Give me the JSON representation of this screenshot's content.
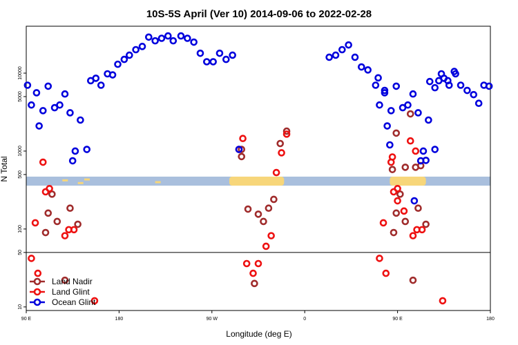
{
  "chart_data": {
    "type": "scatter",
    "title": "10S-5S April (Ver 10)   2014-09-06 to 2022-02-28",
    "xlabel": "Longitude (deg E)",
    "ylabel": "N Total",
    "x_scale": "longitude, 90 E to 180 (wrapping through 180 and 0)",
    "y_scale": "log",
    "ylim": [
      9,
      40000
    ],
    "xlim_labels": [
      "90 E",
      "180"
    ],
    "x_ticks": [
      {
        "label": "90 E",
        "lon": 90
      },
      {
        "label": "180",
        "lon": 180
      },
      {
        "label": "90 W",
        "lon": -90
      },
      {
        "label": "0",
        "lon": 0
      },
      {
        "label": "90 E",
        "lon": 90
      },
      {
        "label": "180",
        "lon": 180
      }
    ],
    "y_ticks": [
      {
        "label": "10",
        "value": 10
      },
      {
        "label": "50",
        "value": 50
      },
      {
        "label": "100",
        "value": 100
      },
      {
        "label": "500",
        "value": 500
      },
      {
        "label": "1000",
        "value": 1000
      },
      {
        "label": "5000",
        "value": 5000
      },
      {
        "label": "10000",
        "value": 10000
      }
    ],
    "reference_line_y": 50,
    "map_strip": {
      "y_low": 360,
      "y_high": 470,
      "ocean_color": "#a9bfdd",
      "land_color": "#f7d67a"
    },
    "land_segments_lon": [
      [
        -112.5,
        -70
      ],
      [
        12,
        40
      ]
    ],
    "legend_position": "bottom-left",
    "series": [
      {
        "name": "Land Nadir",
        "color": "#a02c2c",
        "points": [
          {
            "x": 105,
            "y": 90
          },
          {
            "x": 107,
            "y": 160
          },
          {
            "x": 110,
            "y": 280
          },
          {
            "x": 114,
            "y": 125
          },
          {
            "x": 120,
            "y": 22
          },
          {
            "x": 124,
            "y": 185
          },
          {
            "x": 130,
            "y": 115
          },
          {
            "x": -103,
            "y": 850
          },
          {
            "x": -103,
            "y": 1050
          },
          {
            "x": -98,
            "y": 180
          },
          {
            "x": -93,
            "y": 20
          },
          {
            "x": -90,
            "y": 155
          },
          {
            "x": -86,
            "y": 125
          },
          {
            "x": -82,
            "y": 185
          },
          {
            "x": -78,
            "y": 240
          },
          {
            "x": -73,
            "y": 1250
          },
          {
            "x": -68,
            "y": 1800
          },
          {
            "x": 14,
            "y": 580
          },
          {
            "x": 17,
            "y": 1700
          },
          {
            "x": 24,
            "y": 620
          },
          {
            "x": 28,
            "y": 3000
          },
          {
            "x": 32,
            "y": 620
          },
          {
            "x": 36,
            "y": 650
          },
          {
            "x": 105,
            "y": 90
          },
          {
            "x": 107,
            "y": 160
          },
          {
            "x": 110,
            "y": 280
          },
          {
            "x": 114,
            "y": 125
          },
          {
            "x": 120,
            "y": 22
          },
          {
            "x": 124,
            "y": 185
          },
          {
            "x": 130,
            "y": 115
          }
        ]
      },
      {
        "name": "Land Glint",
        "color": "#ee1111",
        "points": [
          {
            "x": 94,
            "y": 42
          },
          {
            "x": 97,
            "y": 120
          },
          {
            "x": 99,
            "y": 27
          },
          {
            "x": 103,
            "y": 720
          },
          {
            "x": 105,
            "y": 300
          },
          {
            "x": 108,
            "y": 330
          },
          {
            "x": 120,
            "y": 82
          },
          {
            "x": 123,
            "y": 98
          },
          {
            "x": 127,
            "y": 98
          },
          {
            "x": 143,
            "y": 12
          },
          {
            "x": -105,
            "y": 1050
          },
          {
            "x": -102,
            "y": 1450
          },
          {
            "x": -99,
            "y": 36
          },
          {
            "x": -94,
            "y": 27
          },
          {
            "x": -90,
            "y": 36
          },
          {
            "x": -84,
            "y": 60
          },
          {
            "x": -80,
            "y": 82
          },
          {
            "x": -76,
            "y": 530
          },
          {
            "x": -72,
            "y": 950
          },
          {
            "x": -68,
            "y": 1650
          },
          {
            "x": 14,
            "y": 840
          },
          {
            "x": 18,
            "y": 230
          },
          {
            "x": 23,
            "y": 170
          },
          {
            "x": 28,
            "y": 1350
          },
          {
            "x": 32,
            "y": 1000
          },
          {
            "x": 94,
            "y": 42
          },
          {
            "x": 97,
            "y": 120
          },
          {
            "x": 99,
            "y": 27
          },
          {
            "x": 103,
            "y": 720
          },
          {
            "x": 105,
            "y": 300
          },
          {
            "x": 108,
            "y": 330
          },
          {
            "x": 120,
            "y": 82
          },
          {
            "x": 123,
            "y": 98
          },
          {
            "x": 127,
            "y": 98
          },
          {
            "x": 143,
            "y": 12
          }
        ]
      },
      {
        "name": "Ocean Glint",
        "color": "#0000dd",
        "points": [
          {
            "x": 91,
            "y": 7000
          },
          {
            "x": 94,
            "y": 3900
          },
          {
            "x": 98,
            "y": 5600
          },
          {
            "x": 100,
            "y": 2100
          },
          {
            "x": 103,
            "y": 3300
          },
          {
            "x": 107,
            "y": 6800
          },
          {
            "x": 112,
            "y": 3600
          },
          {
            "x": 116,
            "y": 3900
          },
          {
            "x": 120,
            "y": 5400
          },
          {
            "x": 124,
            "y": 3100
          },
          {
            "x": 126,
            "y": 750
          },
          {
            "x": 128,
            "y": 1000
          },
          {
            "x": 132,
            "y": 2500
          },
          {
            "x": 137,
            "y": 1050
          },
          {
            "x": 140,
            "y": 8000
          },
          {
            "x": 144,
            "y": 8600
          },
          {
            "x": 148,
            "y": 7000
          },
          {
            "x": 153,
            "y": 9800
          },
          {
            "x": 157,
            "y": 9500
          },
          {
            "x": 161,
            "y": 13000
          },
          {
            "x": 166,
            "y": 15000
          },
          {
            "x": 170,
            "y": 17000
          },
          {
            "x": 175,
            "y": 20000
          },
          {
            "x": 180,
            "y": 22000
          },
          {
            "x": -175,
            "y": 29000
          },
          {
            "x": -170,
            "y": 26000
          },
          {
            "x": -165,
            "y": 28000
          },
          {
            "x": -160,
            "y": 30000
          },
          {
            "x": -156,
            "y": 26000
          },
          {
            "x": -150,
            "y": 30000
          },
          {
            "x": -145,
            "y": 28000
          },
          {
            "x": -140,
            "y": 25000
          },
          {
            "x": -135,
            "y": 18000
          },
          {
            "x": -130,
            "y": 14000
          },
          {
            "x": -125,
            "y": 14000
          },
          {
            "x": -120,
            "y": 18000
          },
          {
            "x": -115,
            "y": 15000
          },
          {
            "x": -110,
            "y": 17000
          },
          {
            "x": -105,
            "y": 1050
          },
          {
            "x": -35,
            "y": 16000
          },
          {
            "x": -30,
            "y": 17000
          },
          {
            "x": -25,
            "y": 20000
          },
          {
            "x": -20,
            "y": 23000
          },
          {
            "x": -15,
            "y": 16000
          },
          {
            "x": -10,
            "y": 12000
          },
          {
            "x": -5,
            "y": 11000
          },
          {
            "x": 3,
            "y": 8700
          },
          {
            "x": 8,
            "y": 6000
          },
          {
            "x": 12,
            "y": 1200
          },
          {
            "x": 31,
            "y": 230
          },
          {
            "x": 40,
            "y": 760
          },
          {
            "x": 43,
            "y": 7800
          },
          {
            "x": 47,
            "y": 6500
          },
          {
            "x": 52,
            "y": 9800
          },
          {
            "x": 57,
            "y": 8000
          },
          {
            "x": 62,
            "y": 10500
          },
          {
            "x": 67,
            "y": 7000
          },
          {
            "x": 72,
            "y": 6000
          },
          {
            "x": 77,
            "y": 5300
          },
          {
            "x": 81,
            "y": 4100
          },
          {
            "x": 85,
            "y": 7000
          },
          {
            "x": 89,
            "y": 6800
          },
          {
            "x": 91,
            "y": 7000
          },
          {
            "x": 94,
            "y": 3900
          },
          {
            "x": 98,
            "y": 5600
          },
          {
            "x": 100,
            "y": 2100
          },
          {
            "x": 103,
            "y": 3300
          },
          {
            "x": 107,
            "y": 6800
          },
          {
            "x": 112,
            "y": 3600
          },
          {
            "x": 116,
            "y": 3900
          },
          {
            "x": 120,
            "y": 5400
          },
          {
            "x": 124,
            "y": 3100
          },
          {
            "x": 126,
            "y": 750
          },
          {
            "x": 128,
            "y": 1000
          },
          {
            "x": 132,
            "y": 2500
          },
          {
            "x": 137,
            "y": 1050
          },
          {
            "x": 140,
            "y": 8000
          },
          {
            "x": 144,
            "y": 8600
          },
          {
            "x": 148,
            "y": 7000
          },
          {
            "x": 153,
            "y": 9800
          }
        ]
      }
    ]
  }
}
